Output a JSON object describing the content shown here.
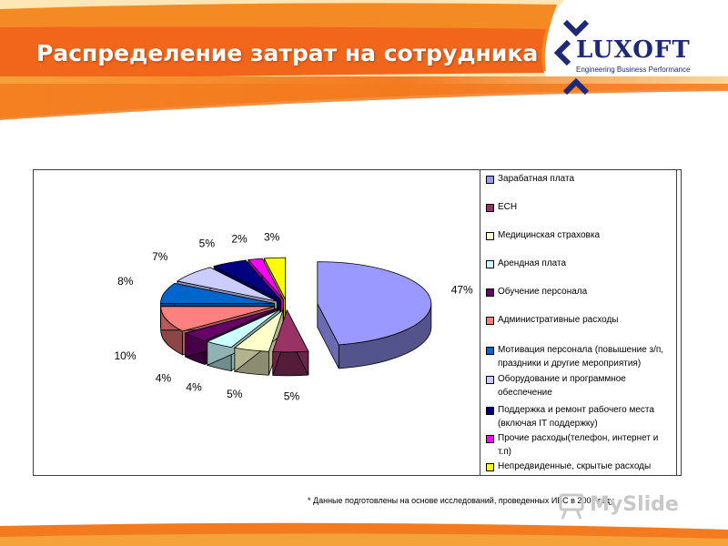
{
  "slide": {
    "title": "Распределение затрат на сотрудника",
    "footnote": "* Данные подготовлены на основе исследований, проведенных ИБС в 2007 году"
  },
  "logo": {
    "word": "LUXOFT",
    "tagline": "Engineering Business Performance"
  },
  "watermark": {
    "text": "MySlide"
  },
  "colors": {
    "orange": "#f07d1e",
    "brand_blue": "#1d2a78"
  },
  "chart_data": {
    "type": "pie",
    "title": "",
    "values": [
      47,
      5,
      5,
      4,
      4,
      10,
      8,
      7,
      5,
      2,
      3
    ],
    "labels": [
      "47%",
      "5%",
      "5%",
      "4%",
      "4%",
      "10%",
      "8%",
      "7%",
      "5%",
      "2%",
      "3%"
    ],
    "categories": [
      "Зарабатная плата",
      "ЕСН",
      "Медицинская страховка",
      "Арендная плата",
      "Обучение персонала",
      "Административные расходы",
      "Мотивация персонала (повышение з/п, праздники и другие мероприятия)",
      "Оборудование и программное обеспечение",
      "Поддержка и ремонт рабочего места (включая IT поддержку)",
      "Прочие расходы(телефон, интернет и т.п)",
      "Непредвиденные, скрытые расходы"
    ],
    "colors": [
      "#9999ff",
      "#993366",
      "#ffffcc",
      "#ccffff",
      "#660066",
      "#ff8080",
      "#0066cc",
      "#ccccff",
      "#000080",
      "#ff00ff",
      "#ffff00"
    ],
    "style": "3d exploded",
    "legend_position": "right"
  }
}
